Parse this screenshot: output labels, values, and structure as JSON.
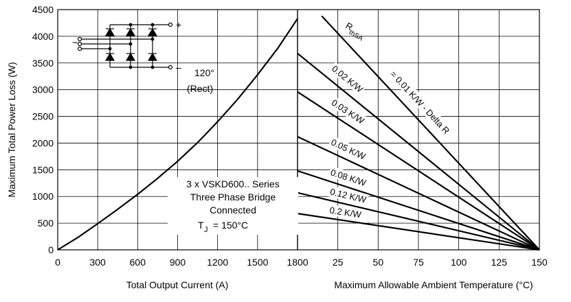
{
  "chart_data": [
    {
      "type": "line",
      "title": "",
      "xlabel": "Total Output Current (A)",
      "ylabel": "Maximum Total Power Loss (W)",
      "xlim": [
        0,
        1800
      ],
      "ylim": [
        0,
        4500
      ],
      "xticks": [
        "0",
        "300",
        "600",
        "900",
        "1200",
        "1500",
        "1800"
      ],
      "yticks": [
        "0",
        "500",
        "1000",
        "1500",
        "2000",
        "2500",
        "3000",
        "3500",
        "4000",
        "4500"
      ],
      "grid": true,
      "series": [
        {
          "name": "120° (Rect)",
          "x": [
            0,
            150,
            300,
            450,
            600,
            750,
            900,
            1050,
            1200,
            1350,
            1500,
            1650,
            1800
          ],
          "y": [
            0,
            230,
            490,
            760,
            1040,
            1340,
            1660,
            2010,
            2400,
            2820,
            3280,
            3770,
            4330
          ]
        }
      ],
      "annotations": {
        "conduction_angle": "120°",
        "conduction_type": "(Rect)",
        "device_lines": [
          "3 x VSKD600.. Series",
          "Three Phase Bridge",
          "Connected"
        ],
        "tj_symbol": "T",
        "tj_subscript": "J",
        "tj_value": "=  150°C",
        "circuit_plus": "+",
        "circuit_minus": "–",
        "circuit_ac": "~"
      }
    },
    {
      "type": "line",
      "title": "",
      "xlabel": "Maximum Allowable Ambient Temperature (°C)",
      "ylabel": "Maximum Total Power Loss (W)",
      "xlim": [
        0,
        150
      ],
      "ylim": [
        0,
        4500
      ],
      "xticks": [
        "25",
        "50",
        "75",
        "100",
        "125",
        "150"
      ],
      "grid": true,
      "rth_symbol": "R",
      "rth_subscript": "thSA",
      "series": [
        {
          "name": "= 0.01 K/W - Delta R",
          "x": [
            15,
            150
          ],
          "y": [
            4380,
            0
          ]
        },
        {
          "name": "0.02 K/W",
          "x": [
            0,
            150
          ],
          "y": [
            3680,
            0
          ]
        },
        {
          "name": "0.03 K/W",
          "x": [
            0,
            150
          ],
          "y": [
            2960,
            0
          ]
        },
        {
          "name": "0.05 K/W",
          "x": [
            0,
            150
          ],
          "y": [
            2120,
            0
          ]
        },
        {
          "name": "0.08 K/W",
          "x": [
            0,
            150
          ],
          "y": [
            1480,
            0
          ]
        },
        {
          "name": "0.12 K/W",
          "x": [
            0,
            150
          ],
          "y": [
            1070,
            0
          ]
        },
        {
          "name": "0.2 K/W",
          "x": [
            0,
            150
          ],
          "y": [
            680,
            0
          ]
        }
      ]
    }
  ]
}
